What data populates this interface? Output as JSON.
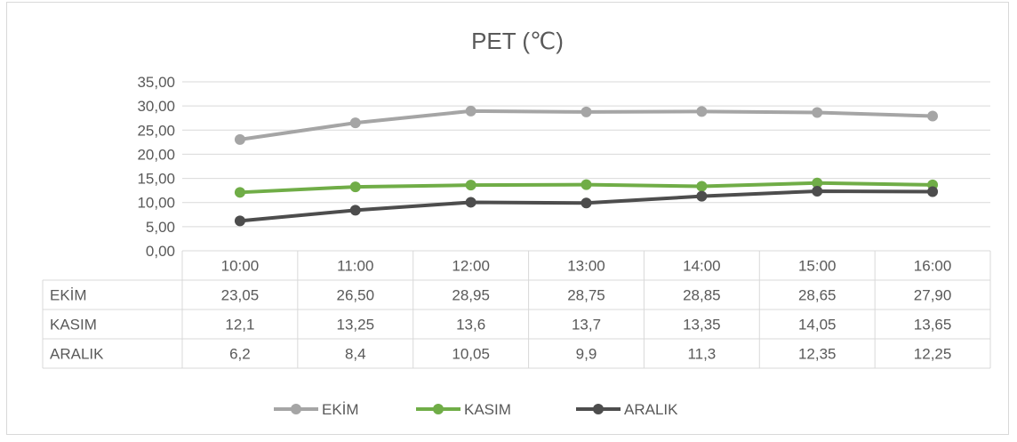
{
  "chart_data": {
    "type": "line",
    "title": "PET (℃)",
    "xlabel": "",
    "ylabel": "",
    "ylim": [
      0,
      35
    ],
    "y_ticks": [
      "0,00",
      "5,00",
      "10,00",
      "15,00",
      "20,00",
      "25,00",
      "30,00",
      "35,00"
    ],
    "categories": [
      "10:00",
      "11:00",
      "12:00",
      "13:00",
      "14:00",
      "15:00",
      "16:00"
    ],
    "grid": true,
    "legend_position": "bottom",
    "data_table": true,
    "series": [
      {
        "name": "EKİM",
        "color": "#a5a5a5",
        "values": [
          23.05,
          26.5,
          28.95,
          28.75,
          28.85,
          28.65,
          27.9
        ],
        "labels": [
          "23,05",
          "26,50",
          "28,95",
          "28,75",
          "28,85",
          "28,65",
          "27,90"
        ]
      },
      {
        "name": "KASIM",
        "color": "#70ad47",
        "values": [
          12.1,
          13.25,
          13.6,
          13.7,
          13.35,
          14.05,
          13.65
        ],
        "labels": [
          "12,1",
          "13,25",
          "13,6",
          "13,7",
          "13,35",
          "14,05",
          "13,65"
        ]
      },
      {
        "name": "ARALIK",
        "color": "#4d4d4d",
        "values": [
          6.2,
          8.4,
          10.05,
          9.9,
          11.3,
          12.35,
          12.25
        ],
        "labels": [
          "6,2",
          "8,4",
          "10,05",
          "9,9",
          "11,3",
          "12,35",
          "12,25"
        ]
      }
    ]
  }
}
